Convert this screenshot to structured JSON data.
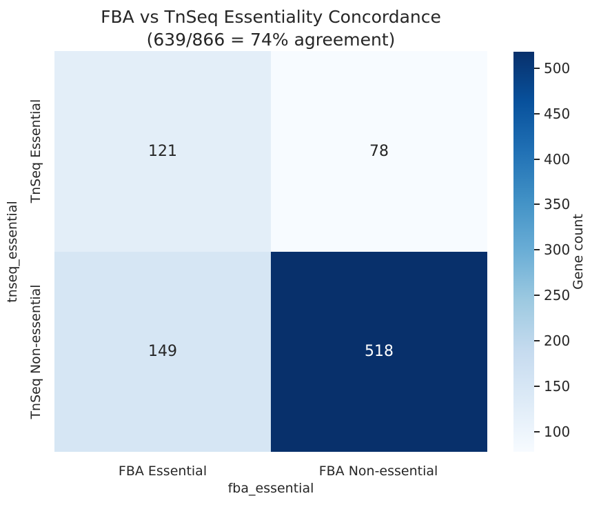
{
  "title": {
    "line1": "FBA vs TnSeq Essentiality Concordance",
    "line2": "(639/866 = 74% agreement)"
  },
  "chart_data": {
    "type": "heatmap",
    "title": "FBA vs TnSeq Essentiality Concordance (639/866 = 74% agreement)",
    "xlabel": "fba_essential",
    "ylabel": "tnseq_essential",
    "x_categories": [
      "FBA Essential",
      "FBA Non-essential"
    ],
    "y_categories": [
      "TnSeq Essential",
      "TnSeq Non-essential"
    ],
    "values": [
      [
        121,
        78
      ],
      [
        149,
        518
      ]
    ],
    "cells": [
      {
        "row": "TnSeq Essential",
        "col": "FBA Essential",
        "value": "121",
        "color": "#e3eef8",
        "text_color": "#262626"
      },
      {
        "row": "TnSeq Essential",
        "col": "FBA Non-essential",
        "value": "78",
        "color": "#f7fbff",
        "text_color": "#262626"
      },
      {
        "row": "TnSeq Non-essential",
        "col": "FBA Essential",
        "value": "149",
        "color": "#d6e6f4",
        "text_color": "#262626"
      },
      {
        "row": "TnSeq Non-essential",
        "col": "FBA Non-essential",
        "value": "518",
        "color": "#08306b",
        "text_color": "#ffffff"
      }
    ],
    "colorbar": {
      "label": "Gene count",
      "vmin": 78,
      "vmax": 518,
      "ticks": [
        100,
        150,
        200,
        250,
        300,
        350,
        400,
        450,
        500
      ],
      "gradient_stops": [
        "#f7fbff",
        "#deebf7",
        "#c6dbef",
        "#9ecae1",
        "#6baed6",
        "#4292c6",
        "#2171b5",
        "#08519c",
        "#08306b"
      ]
    },
    "grid": false,
    "legend_position": "right-colorbar"
  }
}
